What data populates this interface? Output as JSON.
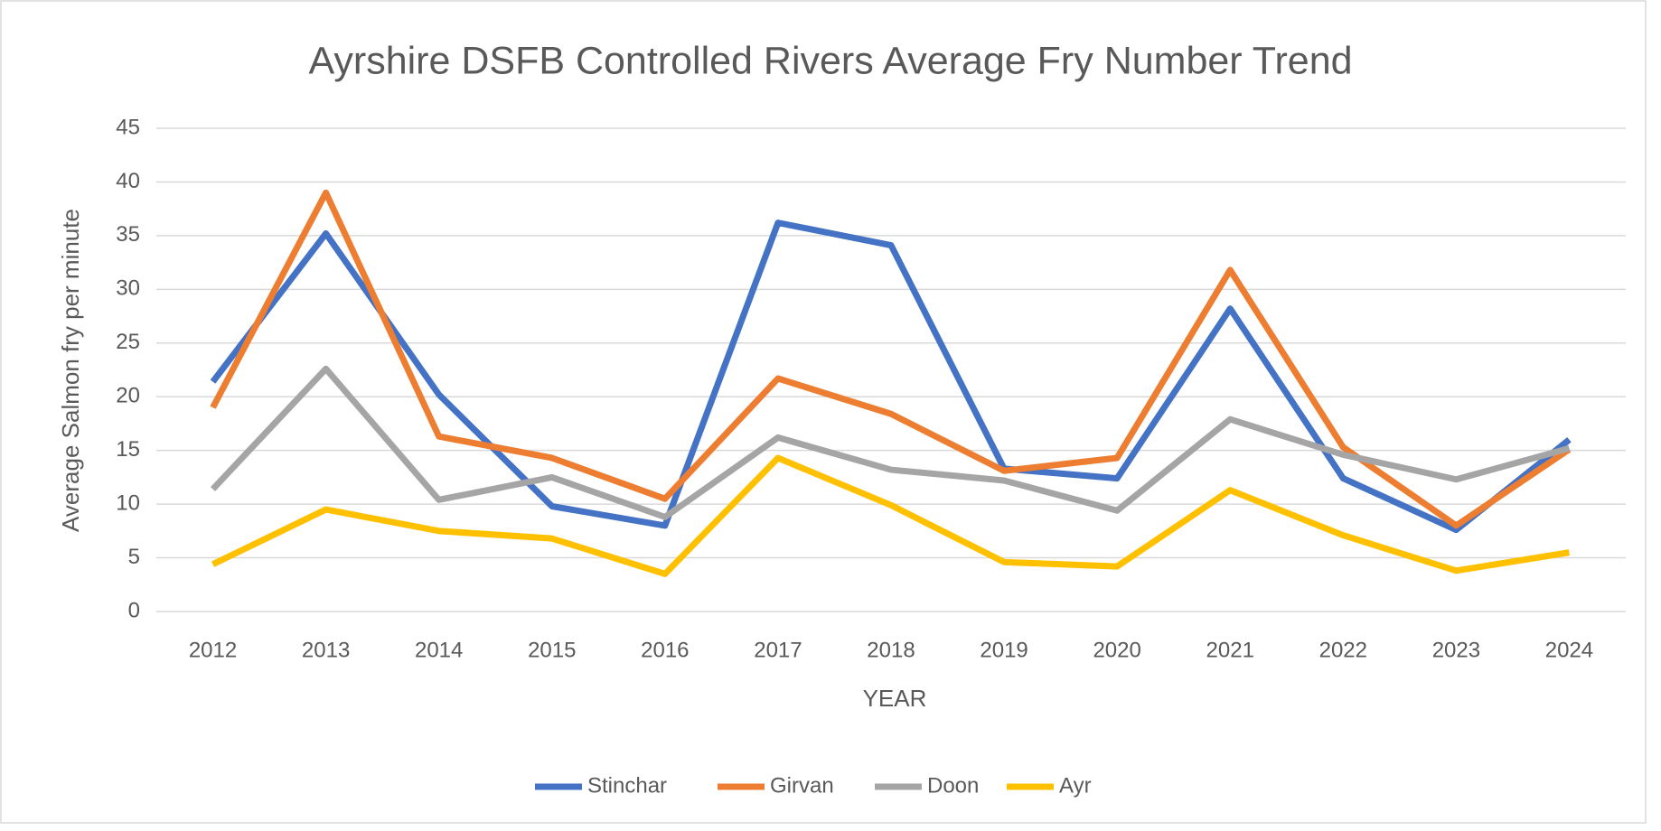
{
  "chart_data": {
    "type": "line",
    "title": "Ayrshire DSFB Controlled Rivers Average Fry Number Trend",
    "x_label": "YEAR",
    "y_label": "Average Salmon fry per minute",
    "categories": [
      "2012",
      "2013",
      "2014",
      "2015",
      "2016",
      "2017",
      "2018",
      "2019",
      "2020",
      "2021",
      "2022",
      "2023",
      "2024"
    ],
    "series": [
      {
        "name": "Stinchar",
        "color": "#4472c4",
        "values": [
          21.4,
          35.2,
          20.2,
          9.8,
          8.0,
          36.2,
          34.1,
          13.3,
          12.4,
          28.2,
          12.4,
          7.6,
          16.0
        ]
      },
      {
        "name": "Girvan",
        "color": "#ed7d31",
        "values": [
          19.0,
          39.0,
          16.3,
          14.3,
          10.5,
          21.7,
          18.4,
          13.1,
          14.3,
          31.8,
          15.3,
          8.0,
          15.1
        ]
      },
      {
        "name": "Doon",
        "color": "#a5a5a5",
        "values": [
          11.4,
          22.6,
          10.4,
          12.5,
          8.8,
          16.2,
          13.2,
          12.2,
          9.4,
          17.9,
          14.6,
          12.3,
          15.2
        ]
      },
      {
        "name": "Ayr",
        "color": "#ffc000",
        "values": [
          4.4,
          9.5,
          7.5,
          6.8,
          3.5,
          14.3,
          9.9,
          4.6,
          4.2,
          11.3,
          7.1,
          3.8,
          5.5
        ]
      }
    ],
    "ylim": [
      0,
      45
    ],
    "yticks": [
      0,
      5,
      10,
      15,
      20,
      25,
      30,
      35,
      40,
      45
    ],
    "grid": true,
    "legend": "bottom"
  }
}
